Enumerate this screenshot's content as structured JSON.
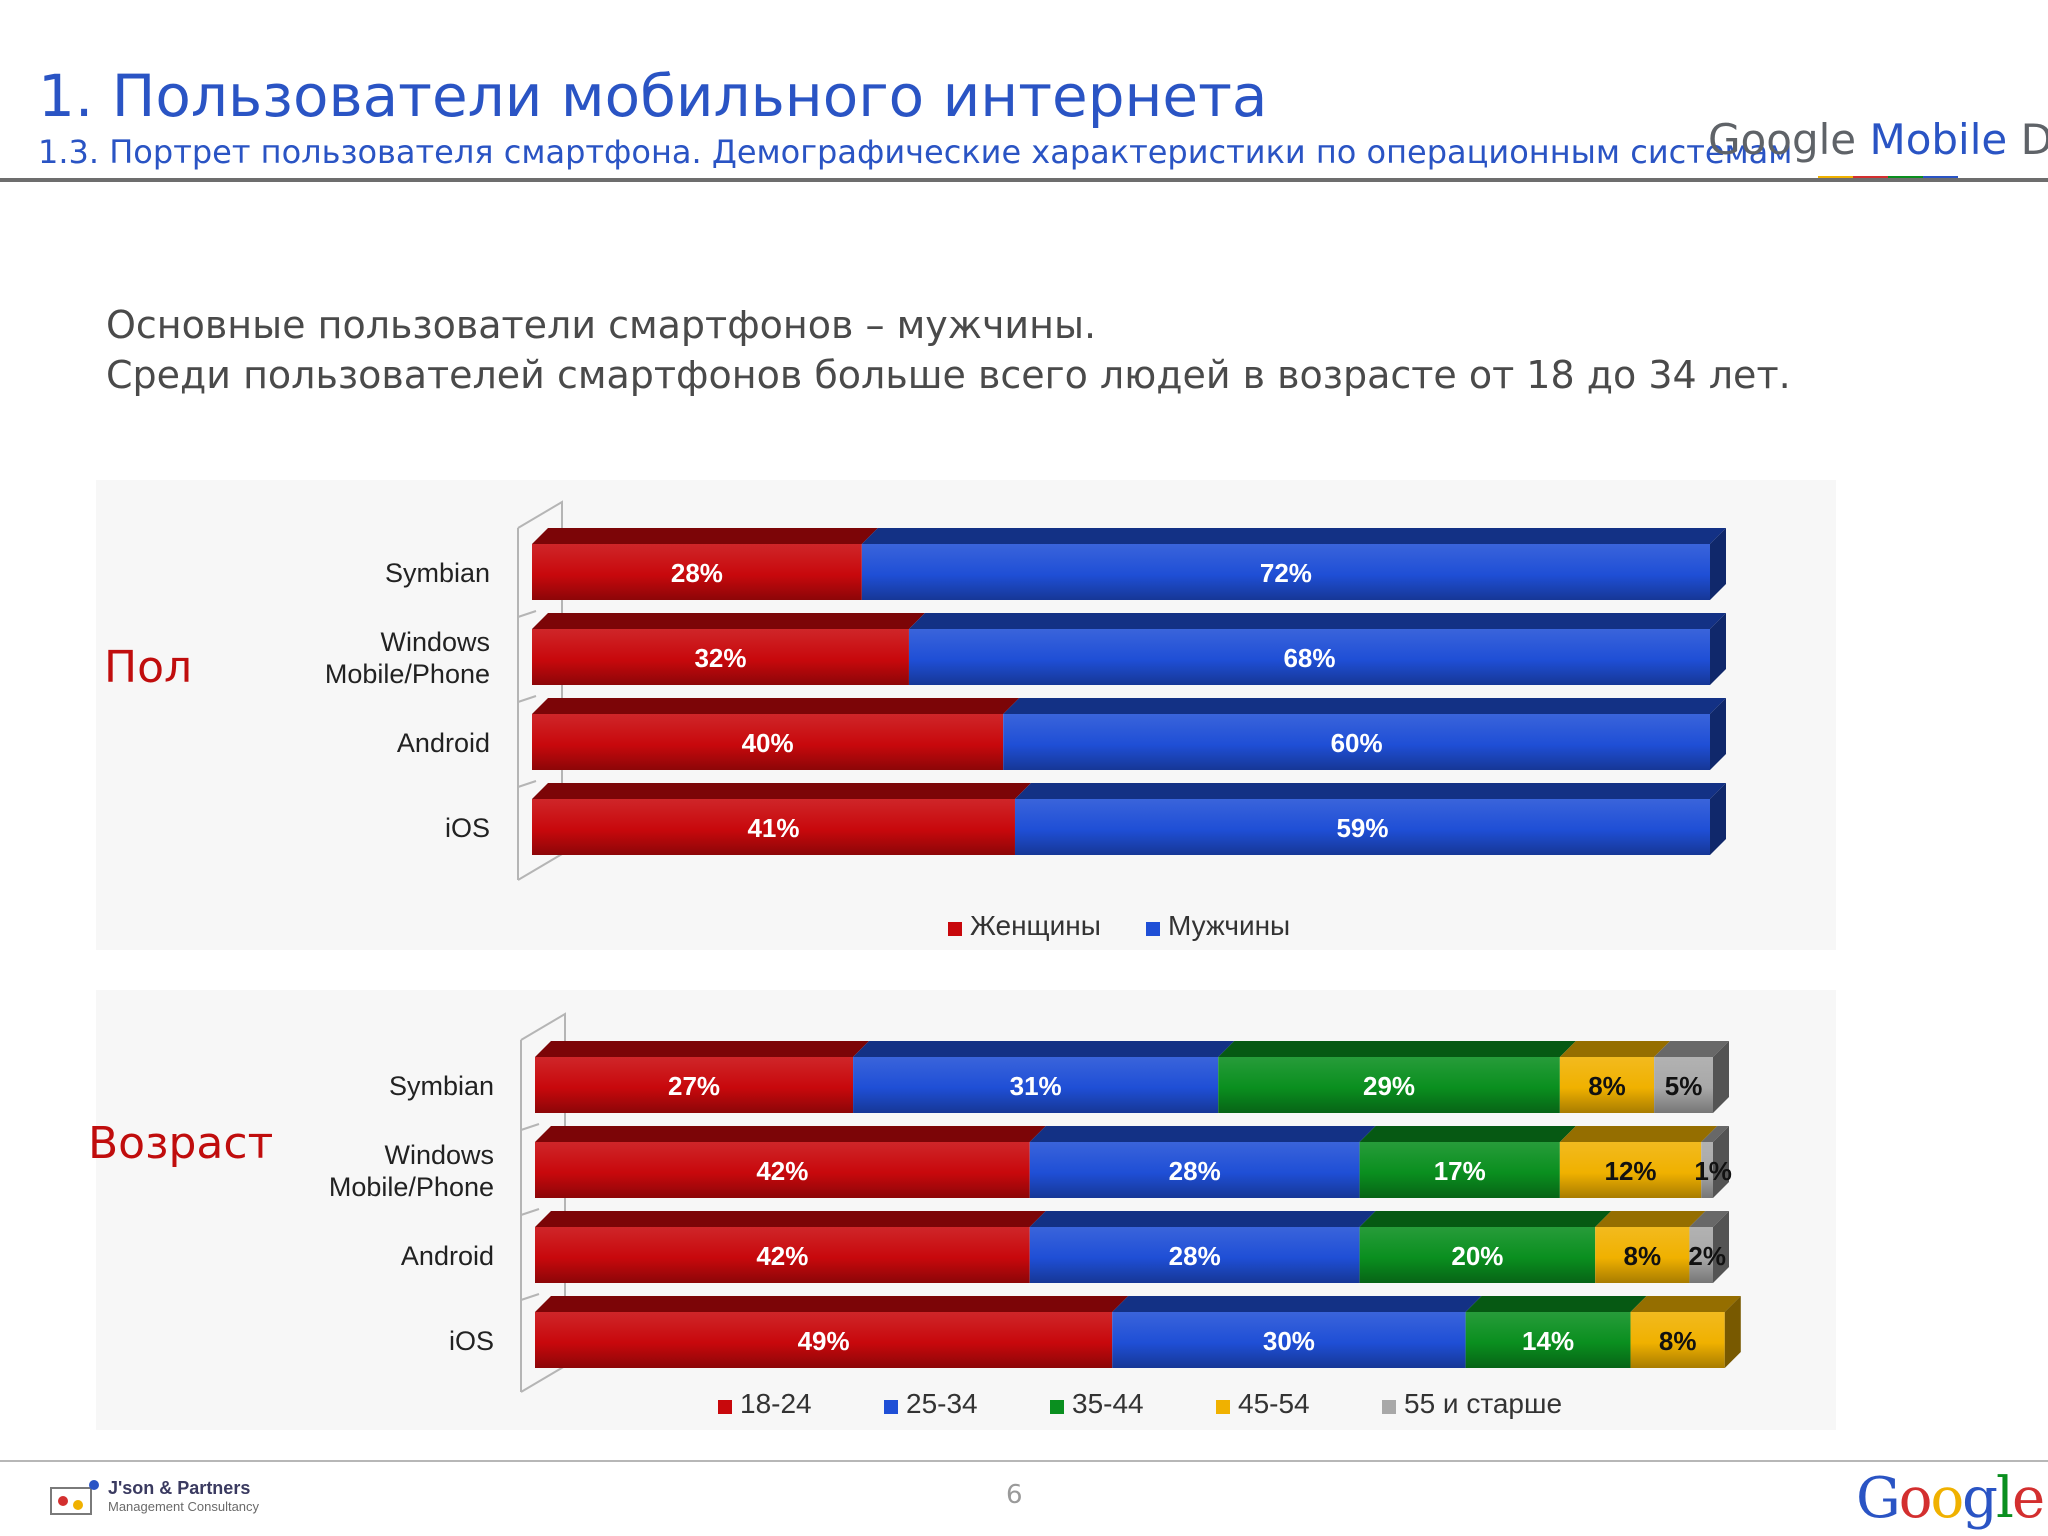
{
  "header": {
    "title": "1. Пользователи мобильного интернета",
    "subtitle": "1.3. Портрет пользователя смартфона. Демографические характеристики по операционным системам",
    "brand_part1": "Google",
    "brand_part2": " Mobile",
    "brand_part3": " Day"
  },
  "headline": {
    "line1": "Основные пользователи смартфонов – мужчины.",
    "line2": "Среди пользователей смартфонов больше всего  людей в возрасте от 18 до 34 лет."
  },
  "sections": {
    "gender_label": "Пол",
    "age_label": "Возраст"
  },
  "chart_data": [
    {
      "type": "bar",
      "orientation": "horizontal",
      "stacked": true,
      "stack_percent": true,
      "categories": [
        "Symbian",
        "Windows Mobile/Phone",
        "Android",
        "iOS"
      ],
      "category_lines": [
        [
          "Symbian"
        ],
        [
          "Windows",
          "Mobile/Phone"
        ],
        [
          "Android"
        ],
        [
          "iOS"
        ]
      ],
      "series": [
        {
          "name": "Женщины",
          "color": "#c8080c",
          "values": [
            28,
            32,
            40,
            41
          ],
          "labels": [
            "28%",
            "32%",
            "40%",
            "41%"
          ]
        },
        {
          "name": "Мужчины",
          "color": "#1f4fd6",
          "values": [
            72,
            68,
            60,
            59
          ],
          "labels": [
            "72%",
            "68%",
            "60%",
            "59%"
          ]
        }
      ],
      "xlim": [
        0,
        100
      ],
      "legend_position": "bottom",
      "grid": false
    },
    {
      "type": "bar",
      "orientation": "horizontal",
      "stacked": true,
      "stack_percent": true,
      "categories": [
        "Symbian",
        "Windows Mobile/Phone",
        "Android",
        "iOS"
      ],
      "category_lines": [
        [
          "Symbian"
        ],
        [
          "Windows",
          "Mobile/Phone"
        ],
        [
          "Android"
        ],
        [
          "iOS"
        ]
      ],
      "series": [
        {
          "name": "18-24",
          "color": "#c8080c",
          "values": [
            27,
            42,
            42,
            49
          ],
          "labels": [
            "27%",
            "42%",
            "42%",
            "49%"
          ]
        },
        {
          "name": "25-34",
          "color": "#1f4fd6",
          "values": [
            31,
            28,
            28,
            30
          ],
          "labels": [
            "31%",
            "28%",
            "28%",
            "30%"
          ]
        },
        {
          "name": "35-44",
          "color": "#0a8f1f",
          "values": [
            29,
            17,
            20,
            14
          ],
          "labels": [
            "29%",
            "17%",
            "20%",
            "14%"
          ]
        },
        {
          "name": "45-54",
          "color": "#f0b100",
          "values": [
            8,
            12,
            8,
            8
          ],
          "labels": [
            "8%",
            "12%",
            "8%",
            "8%"
          ]
        },
        {
          "name": "55 и старше",
          "color": "#a8a8a8",
          "values": [
            5,
            1,
            2,
            0
          ],
          "labels": [
            "5%",
            "1%",
            "2%",
            ""
          ]
        }
      ],
      "xlim": [
        0,
        100
      ],
      "legend_position": "bottom",
      "grid": false
    }
  ],
  "footer": {
    "brand_name": "J'son & Partners",
    "brand_tagline": "Management Consultancy",
    "page_number": "6",
    "google_letters": [
      "G",
      "o",
      "o",
      "g",
      "l",
      "e"
    ],
    "google_colors": [
      "#2a54c4",
      "#d32f2f",
      "#f0b100",
      "#2a54c4",
      "#0a8f1f",
      "#d32f2f"
    ]
  }
}
